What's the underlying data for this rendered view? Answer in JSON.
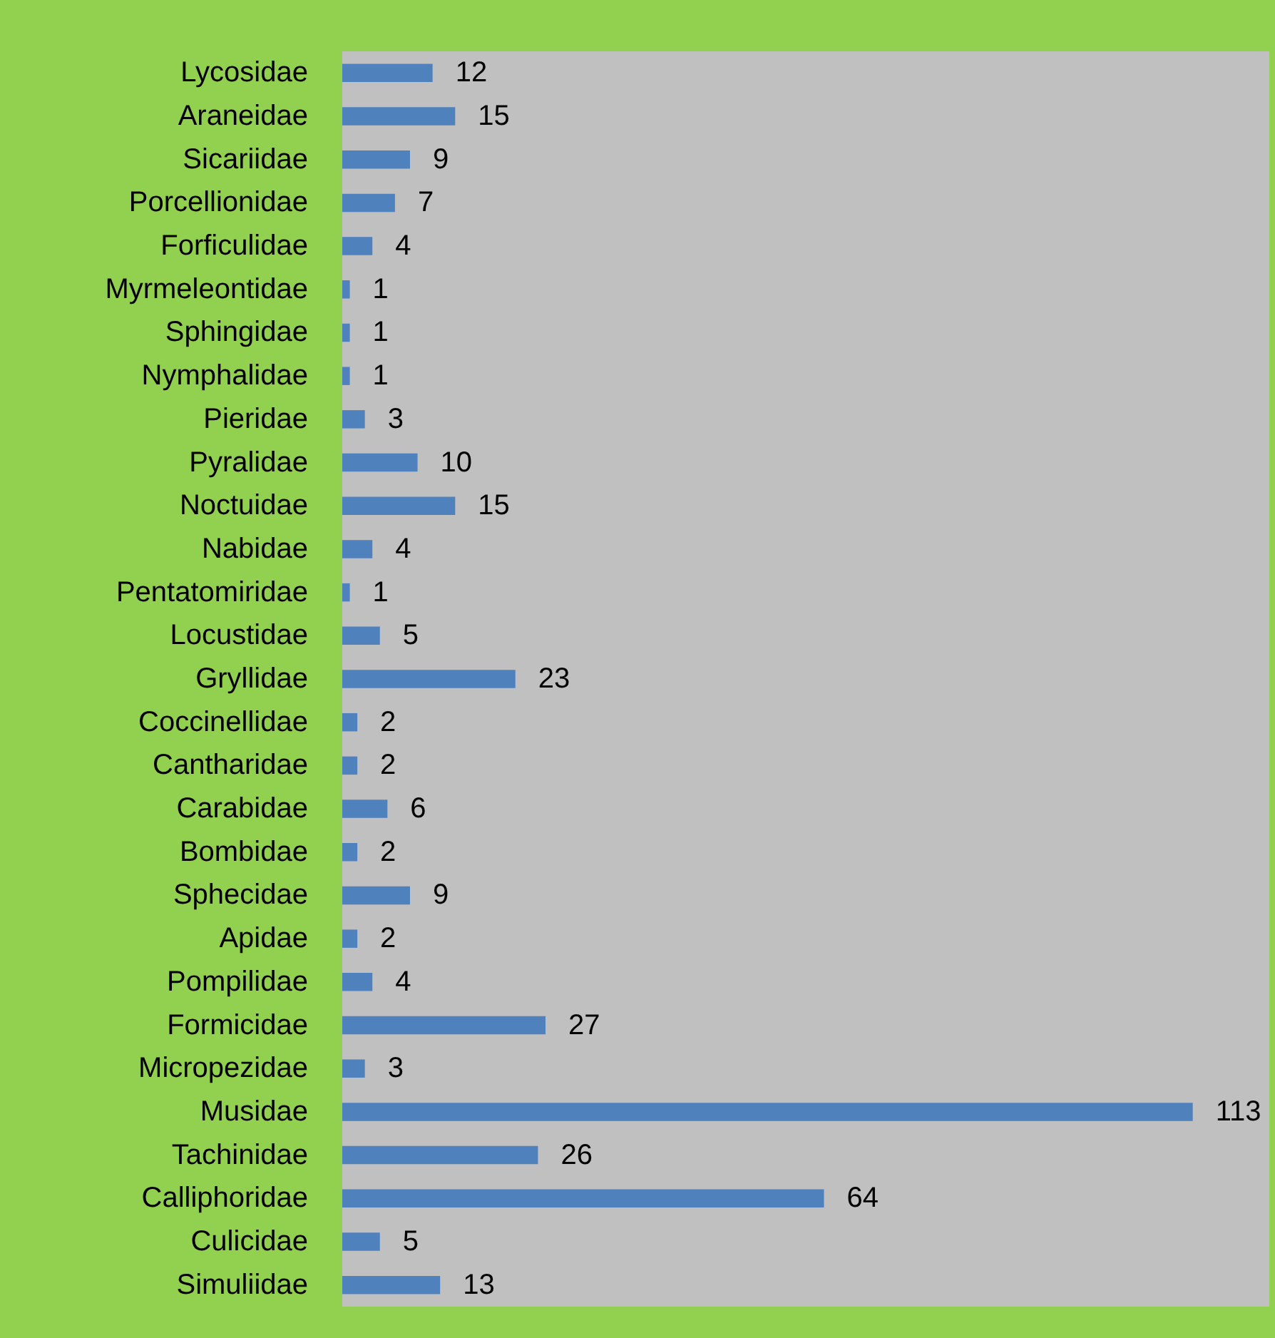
{
  "chart_data": {
    "type": "bar",
    "orientation": "horizontal",
    "categories": [
      "Lycosidae",
      "Araneidae",
      "Sicariidae",
      "Porcellionidae",
      "Forficulidae",
      "Myrmeleontidae",
      "Sphingidae",
      "Nymphalidae",
      "Pieridae",
      "Pyralidae",
      "Noctuidae",
      "Nabidae",
      "Pentatomiridae",
      "Locustidae",
      "Gryllidae",
      "Coccinellidae",
      "Cantharidae",
      "Carabidae",
      "Bombidae",
      "Sphecidae",
      "Apidae",
      "Pompilidae",
      "Formicidae",
      "Micropezidae",
      "Musidae",
      "Tachinidae",
      "Calliphoridae",
      "Culicidae",
      "Simuliidae"
    ],
    "values": [
      12,
      15,
      9,
      7,
      4,
      1,
      1,
      1,
      3,
      10,
      15,
      4,
      1,
      5,
      23,
      2,
      2,
      6,
      2,
      9,
      2,
      4,
      27,
      3,
      113,
      26,
      64,
      5,
      13
    ],
    "color": "#4f81bd",
    "data_labels": true,
    "grid": false,
    "tick_labels": "y"
  }
}
